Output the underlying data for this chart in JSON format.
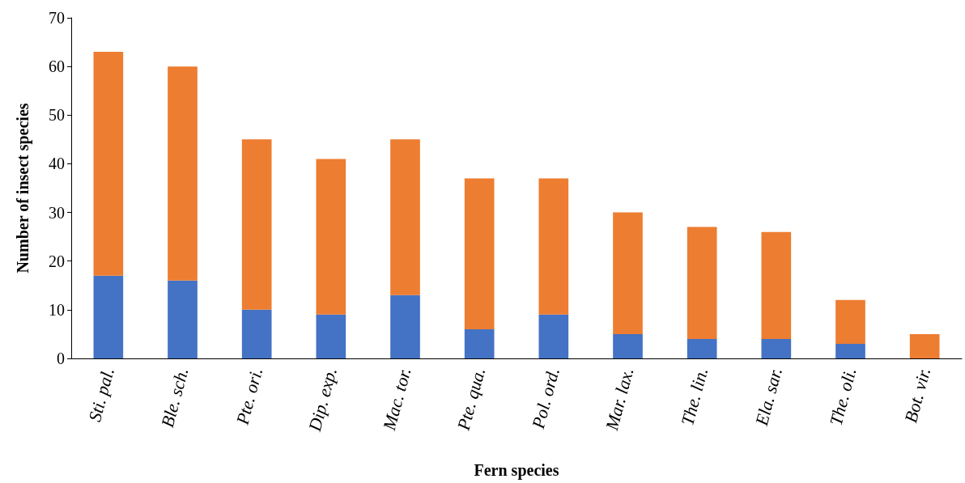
{
  "chart_data": {
    "type": "bar",
    "stacked": true,
    "xlabel": "Fern species",
    "ylabel": "Number of insect species",
    "categories": [
      "Sti. pal.",
      "Ble. sch.",
      "Pte. ori.",
      "Dip. exp.",
      "Mac. tor.",
      "Pte. qua.",
      "Pol. ord.",
      "Mar. lax.",
      "The. lin.",
      "Ela. sar.",
      "The. oli.",
      "Bot. vir."
    ],
    "series": [
      {
        "color": "#4472c4",
        "values": [
          17,
          16,
          10,
          9,
          13,
          6,
          9,
          5,
          4,
          4,
          3,
          0
        ]
      },
      {
        "color": "#ed7d31",
        "values": [
          46,
          44,
          35,
          32,
          32,
          31,
          28,
          25,
          23,
          22,
          9,
          5
        ]
      }
    ],
    "ylim": [
      0,
      70
    ],
    "yticks": [
      0,
      10,
      20,
      30,
      40,
      50,
      60,
      70
    ],
    "grid": false
  }
}
